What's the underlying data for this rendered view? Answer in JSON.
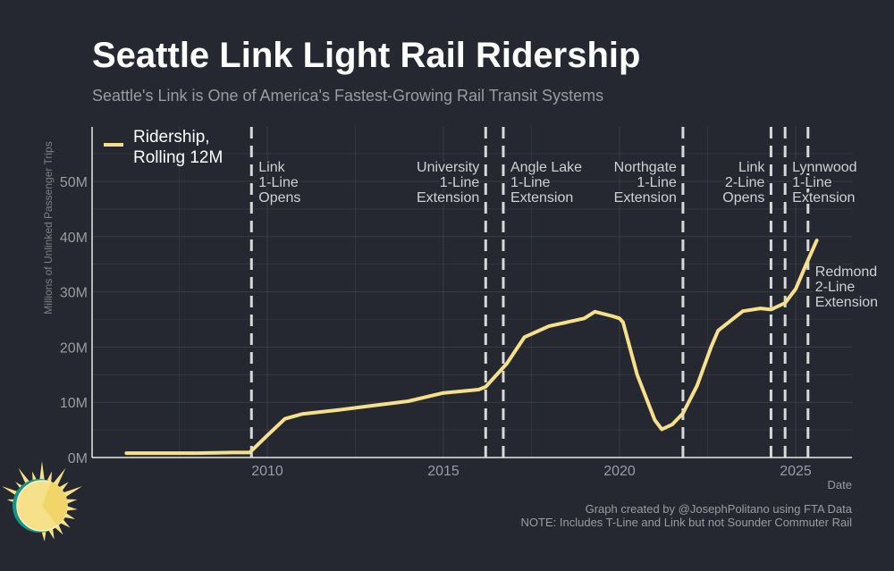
{
  "title": "Seattle Link Light Rail Ridership",
  "subtitle": "Seattle's Link is One of America's Fastest-Growing Rail Transit Systems",
  "caption": [
    "Graph created by @JosephPolitano using FTA Data",
    "NOTE: Includes T-Line and Link but not Sounder Commuter Rail"
  ],
  "colors": {
    "background": "#252830",
    "line": "#f7e08a",
    "grid": "#3a3d45",
    "text": "#c8c9cc",
    "muted": "#9a9ca3"
  },
  "logo": {
    "icon": "sun-icon"
  },
  "chart_data": {
    "type": "line",
    "title": "Seattle Link Light Rail Ridership",
    "xlabel": "Date",
    "ylabel": "Millions of Unlinked Passenger Trips",
    "xlim": [
      2005.0,
      2026.6
    ],
    "ylim": [
      0,
      58
    ],
    "xticks": [
      2010,
      2015,
      2020,
      2025
    ],
    "yticks": [
      0,
      10,
      20,
      30,
      40,
      50
    ],
    "ytick_labels": [
      "0M",
      "10M",
      "20M",
      "30M",
      "40M",
      "50M"
    ],
    "grid": true,
    "legend": {
      "placement": "top-left",
      "entries": [
        "Ridership,",
        "Rolling 12M"
      ]
    },
    "series": [
      {
        "name": "Ridership, Rolling 12M",
        "x": [
          2006.0,
          2007.0,
          2008.0,
          2009.0,
          2009.5,
          2010.0,
          2010.5,
          2011.0,
          2012.0,
          2013.0,
          2014.0,
          2015.0,
          2016.0,
          2016.2,
          2016.8,
          2017.3,
          2018.0,
          2019.0,
          2019.3,
          2019.8,
          2020.0,
          2020.1,
          2020.5,
          2021.0,
          2021.2,
          2021.5,
          2021.8,
          2022.2,
          2022.6,
          2022.8,
          2023.0,
          2023.5,
          2024.0,
          2024.3,
          2024.7,
          2025.0,
          2025.3,
          2025.6
        ],
        "values": [
          0.8,
          0.8,
          0.8,
          0.9,
          0.9,
          4.0,
          7.0,
          7.9,
          8.6,
          9.4,
          10.2,
          11.7,
          12.3,
          12.8,
          17.0,
          21.8,
          23.8,
          25.2,
          26.4,
          25.6,
          25.2,
          24.5,
          15.0,
          6.8,
          5.1,
          6.0,
          8.0,
          13.0,
          20.0,
          23.0,
          24.0,
          26.5,
          27.0,
          26.8,
          28.0,
          30.5,
          35.0,
          39.3
        ]
      }
    ],
    "annotations": [
      {
        "x": 2009.55,
        "lines": [
          "Link",
          "1-Line",
          "Opens"
        ],
        "side": "right",
        "row": "top"
      },
      {
        "x": 2016.2,
        "lines": [
          "University",
          "1-Line",
          "Extension"
        ],
        "side": "left",
        "row": "top"
      },
      {
        "x": 2016.7,
        "lines": [
          "Angle Lake",
          "1-Line",
          "Extension"
        ],
        "side": "right",
        "row": "top"
      },
      {
        "x": 2021.8,
        "lines": [
          "Northgate",
          "1-Line",
          "Extension"
        ],
        "side": "left",
        "row": "top"
      },
      {
        "x": 2024.3,
        "lines": [
          "Link",
          "2-Line",
          "Opens"
        ],
        "side": "left",
        "row": "top"
      },
      {
        "x": 2024.7,
        "lines": [
          "Lynnwood",
          "1-Line",
          "Extension"
        ],
        "side": "right",
        "row": "top"
      },
      {
        "x": 2025.35,
        "lines": [
          "Redmond",
          "2-Line",
          "Extension"
        ],
        "side": "right",
        "row": "middle"
      }
    ]
  }
}
